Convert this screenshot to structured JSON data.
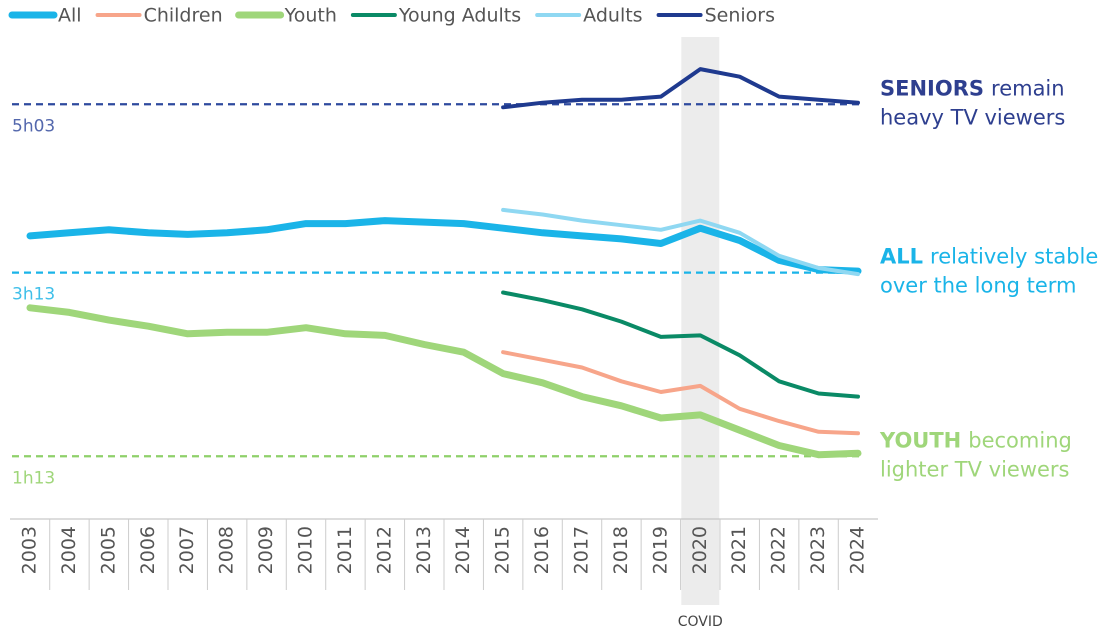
{
  "chart_data": {
    "type": "line",
    "categories": [
      "2003",
      "2004",
      "2005",
      "2006",
      "2007",
      "2008",
      "2009",
      "2010",
      "2011",
      "2012",
      "2013",
      "2014",
      "2015",
      "2016",
      "2017",
      "2018",
      "2019",
      "2020",
      "2021",
      "2022",
      "2023",
      "2024"
    ],
    "series": [
      {
        "name": "All",
        "color": "#1ab4e8",
        "width": 7,
        "values": [
          217,
          219,
          221,
          219,
          218,
          219,
          221,
          225,
          225,
          227,
          226,
          225,
          222,
          219,
          217,
          215,
          212,
          222,
          214,
          201,
          195,
          194
        ]
      },
      {
        "name": "Children",
        "color": "#f7a58a",
        "width": 4,
        "values": [
          null,
          null,
          null,
          null,
          null,
          null,
          null,
          null,
          null,
          null,
          null,
          null,
          141,
          136,
          131,
          122,
          115,
          119,
          104,
          96,
          89,
          88
        ]
      },
      {
        "name": "Youth",
        "color": "#9fd67a",
        "width": 7,
        "values": [
          170,
          167,
          162,
          158,
          153,
          154,
          154,
          157,
          153,
          152,
          146,
          141,
          127,
          121,
          112,
          106,
          98,
          100,
          90,
          80,
          74,
          75
        ]
      },
      {
        "name": "Young Adults",
        "color": "#0a8a66",
        "width": 4,
        "values": [
          null,
          null,
          null,
          null,
          null,
          null,
          null,
          null,
          null,
          null,
          null,
          null,
          180,
          175,
          169,
          161,
          151,
          152,
          139,
          122,
          114,
          112
        ]
      },
      {
        "name": "Adults",
        "color": "#8fd8f2",
        "width": 4,
        "values": [
          null,
          null,
          null,
          null,
          null,
          null,
          null,
          null,
          null,
          null,
          null,
          null,
          234,
          231,
          227,
          224,
          221,
          227,
          219,
          204,
          196,
          192
        ]
      },
      {
        "name": "Seniors",
        "color": "#1f3a8f",
        "width": 4,
        "values": [
          null,
          null,
          null,
          null,
          null,
          null,
          null,
          null,
          null,
          null,
          null,
          null,
          301,
          304,
          306,
          306,
          308,
          326,
          321,
          308,
          306,
          304
        ]
      }
    ],
    "ylim": [
      32,
      345
    ],
    "reference_lines": [
      {
        "value": 303,
        "label": "5h03",
        "color": "#2e4a9e",
        "label_color": "#5468ad"
      },
      {
        "value": 193,
        "label": "3h13",
        "color": "#1ab4e8",
        "label_color": "#3fbfe9"
      },
      {
        "value": 73,
        "label": "1h13",
        "color": "#8fd06a",
        "label_color": "#9fd67a"
      }
    ],
    "shaded": {
      "category": "2020",
      "label": "COVID"
    },
    "annotations": [
      {
        "highlight": "SENIORS",
        "line1": "remain",
        "line2": "heavy TV viewers",
        "color": "#2e3f8f",
        "value": 303
      },
      {
        "highlight": "ALL",
        "line1": "relatively stable",
        "line2": "over the long term",
        "color": "#1ab4e8",
        "value": 193
      },
      {
        "highlight": "YOUTH",
        "line1": "becoming",
        "line2": "lighter TV viewers",
        "color": "#9fd67a",
        "value": 73
      }
    ]
  }
}
